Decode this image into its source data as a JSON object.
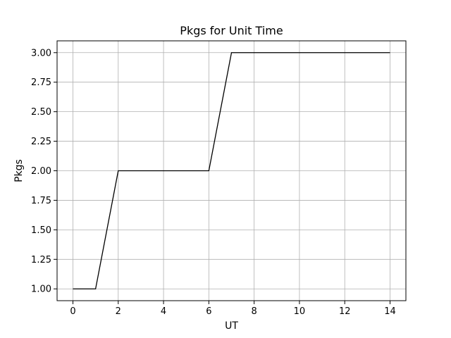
{
  "chart_data": {
    "type": "line",
    "title": "Pkgs for Unit Time",
    "xlabel": "UT",
    "ylabel": "Pkgs",
    "xlim": [
      -0.7,
      14.7
    ],
    "ylim": [
      0.9,
      3.1
    ],
    "grid": true,
    "xticks": [
      0,
      2,
      4,
      6,
      8,
      10,
      12,
      14
    ],
    "yticks": [
      1.0,
      1.25,
      1.5,
      1.75,
      2.0,
      2.25,
      2.5,
      2.75,
      3.0
    ],
    "xtick_labels": [
      "0",
      "2",
      "4",
      "6",
      "8",
      "10",
      "12",
      "14"
    ],
    "ytick_labels": [
      "1.00",
      "1.25",
      "1.50",
      "1.75",
      "2.00",
      "2.25",
      "2.50",
      "2.75",
      "3.00"
    ],
    "series": [
      {
        "color": "#000000",
        "x": [
          0,
          1,
          2,
          3,
          4,
          5,
          6,
          7,
          8,
          9,
          10,
          11,
          12,
          13,
          14
        ],
        "y": [
          1,
          1,
          2,
          2,
          2,
          2,
          2,
          3,
          3,
          3,
          3,
          3,
          3,
          3,
          3
        ]
      }
    ]
  }
}
